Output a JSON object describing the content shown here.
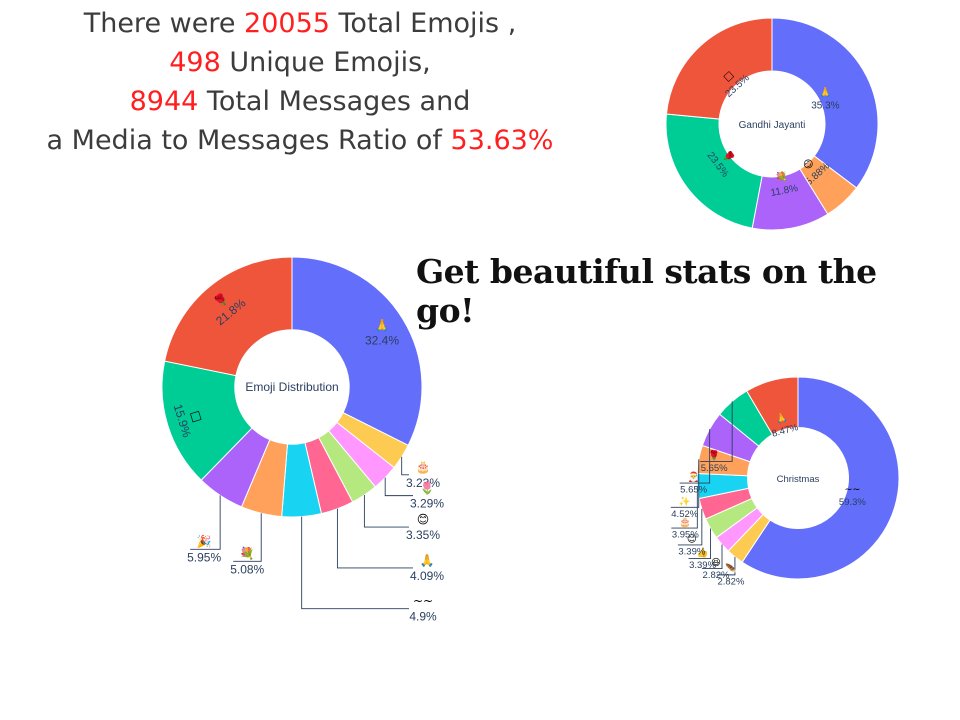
{
  "headline": {
    "prefix": "There were ",
    "total_emojis": "20055",
    "after_total": " Total Emojis ,",
    "unique_emojis": "498",
    "after_unique": " Unique Emojis,",
    "total_messages": "8944",
    "after_messages": " Total Messages and",
    "ratio_prefix": "a Media to Messages Ratio of ",
    "ratio": "53.63%"
  },
  "tagline": "Get beautiful stats on the go!",
  "colors": {
    "text": "#3c3c3c",
    "highlight": "#ff1f1f",
    "label": "#2a3f5f",
    "palette": [
      "#636efa",
      "#EF553B",
      "#00cc96",
      "#ab63fa",
      "#FFA15A",
      "#19d3f3",
      "#FF6692",
      "#B6E880",
      "#FF97FF",
      "#FECB52"
    ]
  },
  "chart_data": [
    {
      "type": "pie",
      "hole": true,
      "title": "Emoji Distribution",
      "slices": [
        {
          "emoji": "🙏",
          "label": "32.4%",
          "value": 32.4,
          "color": "#636efa"
        },
        {
          "emoji": "🎂",
          "label": "3.23%",
          "value": 3.23,
          "color": "#FECB52"
        },
        {
          "emoji": "🌷",
          "label": "3.29%",
          "value": 3.29,
          "color": "#FF97FF"
        },
        {
          "emoji": "😊",
          "label": "3.35%",
          "value": 3.35,
          "color": "#B6E880"
        },
        {
          "emoji": "🙏",
          "label": "4.09%",
          "value": 4.09,
          "color": "#FF6692"
        },
        {
          "emoji": "~~",
          "label": "4.9%",
          "value": 4.9,
          "color": "#19d3f3"
        },
        {
          "emoji": "💐",
          "label": "5.08%",
          "value": 5.08,
          "color": "#FFA15A"
        },
        {
          "emoji": "🎉",
          "label": "5.95%",
          "value": 5.95,
          "color": "#ab63fa"
        },
        {
          "emoji": "□",
          "label": "15.9%",
          "value": 15.9,
          "color": "#00cc96"
        },
        {
          "emoji": "🌹",
          "label": "21.8%",
          "value": 21.8,
          "color": "#EF553B"
        }
      ]
    },
    {
      "type": "pie",
      "hole": true,
      "title": "Gandhi Jayanti",
      "slices": [
        {
          "emoji": "🙏",
          "label": "35.3%",
          "value": 35.3,
          "color": "#636efa"
        },
        {
          "emoji": "😊",
          "label": "5.88%",
          "value": 5.88,
          "color": "#FFA15A"
        },
        {
          "emoji": "💐",
          "label": "11.8%",
          "value": 11.8,
          "color": "#ab63fa"
        },
        {
          "emoji": "🌹",
          "label": "23.5%",
          "value": 23.5,
          "color": "#00cc96"
        },
        {
          "emoji": "□",
          "label": "23.5%",
          "value": 23.5,
          "color": "#EF553B"
        }
      ]
    },
    {
      "type": "pie",
      "hole": true,
      "title": "Christmas",
      "slices": [
        {
          "emoji": "~~",
          "label": "59.3%",
          "value": 59.3,
          "color": "#636efa"
        },
        {
          "emoji": "🪶",
          "label": "2.82%",
          "value": 2.82,
          "color": "#FECB52"
        },
        {
          "emoji": "😆",
          "label": "2.82%",
          "value": 2.82,
          "color": "#FF97FF"
        },
        {
          "emoji": "👍",
          "label": "3.39%",
          "value": 3.39,
          "color": "#B6E880"
        },
        {
          "emoji": "😊",
          "label": "3.39%",
          "value": 3.39,
          "color": "#FF6692"
        },
        {
          "emoji": "🎂",
          "label": "3.95%",
          "value": 3.95,
          "color": "#19d3f3"
        },
        {
          "emoji": "✨",
          "label": "4.52%",
          "value": 4.52,
          "color": "#FFA15A"
        },
        {
          "emoji": "🎅",
          "label": "5.65%",
          "value": 5.65,
          "color": "#ab63fa"
        },
        {
          "emoji": "🌹",
          "label": "5.65%",
          "value": 5.65,
          "color": "#00cc96"
        },
        {
          "emoji": "🙏",
          "label": "8.47%",
          "value": 8.47,
          "color": "#EF553B"
        }
      ]
    }
  ]
}
